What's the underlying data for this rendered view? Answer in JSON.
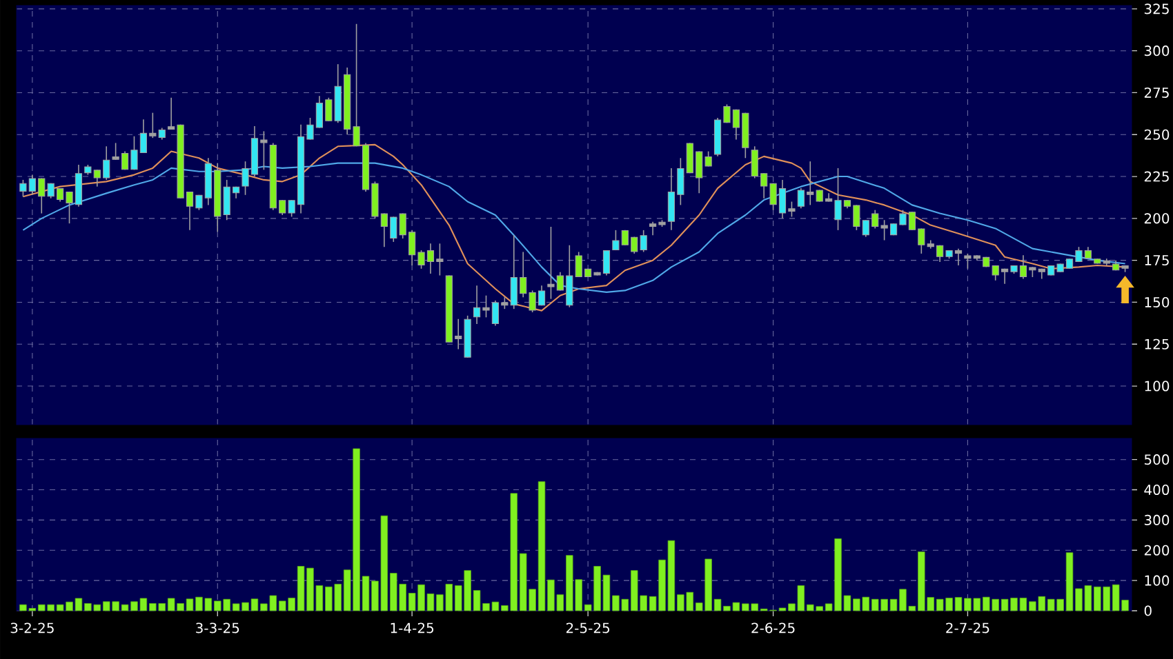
{
  "chart_data": [
    {
      "type": "candlestick",
      "categories": [
        null,
        null,
        null,
        null,
        null,
        null,
        null,
        null,
        null,
        null,
        null,
        null,
        null,
        null,
        null,
        null,
        null,
        null,
        null,
        null,
        null,
        null,
        null,
        null,
        null,
        null,
        null,
        null,
        null,
        null,
        null,
        null,
        null,
        null,
        null,
        null,
        null,
        null,
        null,
        null,
        null,
        null,
        null,
        null,
        null,
        null,
        null,
        null,
        null,
        null,
        null,
        null,
        null,
        null,
        null,
        null,
        null,
        null,
        null,
        null,
        null,
        null,
        null,
        null,
        null,
        null,
        null,
        null,
        null,
        null,
        null,
        null,
        null,
        null,
        null,
        null,
        null,
        null,
        null,
        null,
        null,
        null,
        null,
        null,
        null,
        null,
        null,
        null,
        null,
        null,
        null,
        null,
        null,
        null,
        null,
        null,
        null,
        null,
        null,
        null,
        null,
        null,
        null,
        null,
        null,
        null,
        null,
        null,
        null,
        null,
        null,
        null,
        null,
        null,
        null,
        null,
        null,
        null,
        null,
        null
      ],
      "ohlc": [
        [
          217,
          223,
          213,
          220
        ],
        [
          217,
          226,
          214,
          223
        ],
        [
          223,
          224,
          203,
          214
        ],
        [
          214,
          221,
          212,
          220
        ],
        [
          217,
          218,
          210,
          212
        ],
        [
          215,
          216,
          197,
          210
        ],
        [
          209,
          232,
          207,
          226
        ],
        [
          228,
          232,
          226,
          230
        ],
        [
          228,
          229,
          219,
          225
        ],
        [
          225,
          243,
          223,
          234
        ],
        [
          236,
          245,
          235,
          236
        ],
        [
          238,
          240,
          229,
          230
        ],
        [
          230,
          249,
          229,
          240
        ],
        [
          240,
          259,
          239,
          250
        ],
        [
          250,
          263,
          248,
          250
        ],
        [
          249,
          254,
          247,
          252
        ],
        [
          254,
          272,
          253,
          254
        ],
        [
          255,
          256,
          212,
          213
        ],
        [
          215,
          216,
          193,
          208
        ],
        [
          207,
          214,
          205,
          213
        ],
        [
          213,
          236,
          208,
          232
        ],
        [
          228,
          233,
          192,
          202
        ],
        [
          203,
          223,
          199,
          218
        ],
        [
          216,
          219,
          212,
          218
        ],
        [
          220,
          234,
          214,
          229
        ],
        [
          227,
          255,
          225,
          247
        ],
        [
          246,
          252,
          229,
          246
        ],
        [
          243,
          245,
          205,
          207
        ],
        [
          210,
          211,
          202,
          204
        ],
        [
          204,
          211,
          201,
          210
        ],
        [
          209,
          256,
          203,
          248
        ],
        [
          248,
          260,
          247,
          255
        ],
        [
          255,
          273,
          254,
          268
        ],
        [
          270,
          272,
          258,
          259
        ],
        [
          259,
          292,
          257,
          278
        ],
        [
          285,
          290,
          250,
          254
        ],
        [
          254,
          316,
          243,
          244
        ],
        [
          243,
          245,
          216,
          218
        ],
        [
          220,
          222,
          200,
          202
        ],
        [
          202,
          203,
          183,
          196
        ],
        [
          189,
          201,
          186,
          200
        ],
        [
          202,
          203,
          188,
          191
        ],
        [
          191,
          193,
          172,
          179
        ],
        [
          179,
          181,
          170,
          173
        ],
        [
          180,
          185,
          167,
          175
        ],
        [
          175,
          185,
          166,
          175
        ],
        [
          165,
          166,
          126,
          127
        ],
        [
          129,
          140,
          122,
          129
        ],
        [
          118,
          142,
          117,
          139
        ],
        [
          142,
          160,
          137,
          146
        ],
        [
          146,
          154,
          141,
          146
        ],
        [
          138,
          151,
          136,
          149
        ],
        [
          149,
          153,
          146,
          149
        ],
        [
          149,
          190,
          146,
          164
        ],
        [
          164,
          180,
          153,
          156
        ],
        [
          155,
          157,
          144,
          146
        ],
        [
          149,
          160,
          148,
          156
        ],
        [
          160,
          195,
          152,
          160
        ],
        [
          165,
          168,
          157,
          158
        ],
        [
          149,
          184,
          147,
          165
        ],
        [
          177,
          180,
          165,
          166
        ],
        [
          169,
          170,
          165,
          166
        ],
        [
          167,
          168,
          166,
          167
        ],
        [
          168,
          180,
          166,
          180
        ],
        [
          182,
          193,
          181,
          186
        ],
        [
          192,
          193,
          184,
          185
        ],
        [
          188,
          189,
          179,
          181
        ],
        [
          182,
          193,
          180,
          189
        ],
        [
          196,
          198,
          190,
          196
        ],
        [
          197,
          199,
          195,
          197
        ],
        [
          199,
          230,
          193,
          215
        ],
        [
          215,
          236,
          208,
          229
        ],
        [
          244,
          245,
          227,
          228
        ],
        [
          239,
          240,
          215,
          225
        ],
        [
          236,
          240,
          231,
          232
        ],
        [
          239,
          260,
          237,
          258
        ],
        [
          266,
          268,
          257,
          258
        ],
        [
          264,
          265,
          247,
          255
        ],
        [
          262,
          263,
          236,
          243
        ],
        [
          240,
          243,
          224,
          226
        ],
        [
          226,
          227,
          212,
          220
        ],
        [
          220,
          221,
          205,
          209
        ],
        [
          204,
          223,
          200,
          217
        ],
        [
          205,
          210,
          201,
          205
        ],
        [
          208,
          218,
          206,
          216
        ],
        [
          215,
          234,
          208,
          215
        ],
        [
          216,
          217,
          210,
          211
        ],
        [
          211,
          215,
          210,
          211
        ],
        [
          200,
          230,
          193,
          210
        ],
        [
          210,
          211,
          206,
          208
        ],
        [
          207,
          208,
          193,
          196
        ],
        [
          191,
          199,
          189,
          198
        ],
        [
          202,
          205,
          194,
          196
        ],
        [
          195,
          199,
          187,
          195
        ],
        [
          191,
          197,
          190,
          196
        ],
        [
          197,
          205,
          196,
          202
        ],
        [
          203,
          204,
          193,
          194
        ],
        [
          193,
          194,
          179,
          185
        ],
        [
          184,
          187,
          182,
          184
        ],
        [
          183,
          184,
          174,
          178
        ],
        [
          178,
          181,
          176,
          180
        ],
        [
          180,
          182,
          172,
          180
        ],
        [
          177,
          179,
          170,
          177
        ],
        [
          177,
          178,
          175,
          177
        ],
        [
          176,
          177,
          171,
          172
        ],
        [
          171,
          172,
          163,
          167
        ],
        [
          169,
          170,
          161,
          169
        ],
        [
          169,
          172,
          167,
          171
        ],
        [
          171,
          178,
          164,
          166
        ],
        [
          170,
          171,
          165,
          170
        ],
        [
          169,
          170,
          164,
          169
        ],
        [
          167,
          171,
          166,
          171
        ],
        [
          169,
          173,
          168,
          172
        ],
        [
          171,
          176,
          170,
          175
        ],
        [
          175,
          183,
          174,
          180
        ],
        [
          180,
          183,
          176,
          177
        ],
        [
          175,
          176,
          173,
          174
        ],
        [
          174,
          176,
          172,
          174
        ],
        [
          172,
          175,
          169,
          170
        ],
        [
          171,
          172,
          168,
          171
        ]
      ],
      "colors": [
        "#33e6f2",
        "#33e6f2",
        "#80f020",
        "#33e6f2",
        "#80f020",
        "#80f020",
        "#33e6f2",
        "#33e6f2",
        "#80f020",
        "#33e6f2",
        "#a0a0a0",
        "#80f020",
        "#33e6f2",
        "#33e6f2",
        "#a0a0a0",
        "#33e6f2",
        "#a0a0a0",
        "#80f020",
        "#80f020",
        "#33e6f2",
        "#33e6f2",
        "#80f020",
        "#33e6f2",
        "#33e6f2",
        "#33e6f2",
        "#33e6f2",
        "#a0a0a0",
        "#80f020",
        "#80f020",
        "#33e6f2",
        "#33e6f2",
        "#33e6f2",
        "#33e6f2",
        "#80f020",
        "#33e6f2",
        "#80f020",
        "#80f020",
        "#80f020",
        "#80f020",
        "#80f020",
        "#33e6f2",
        "#80f020",
        "#80f020",
        "#80f020",
        "#80f020",
        "#a0a0a0",
        "#80f020",
        "#a0a0a0",
        "#33e6f2",
        "#33e6f2",
        "#a0a0a0",
        "#33e6f2",
        "#a0a0a0",
        "#33e6f2",
        "#80f020",
        "#80f020",
        "#33e6f2",
        "#a0a0a0",
        "#80f020",
        "#33e6f2",
        "#80f020",
        "#80f020",
        "#a0a0a0",
        "#33e6f2",
        "#33e6f2",
        "#80f020",
        "#80f020",
        "#33e6f2",
        "#a0a0a0",
        "#a0a0a0",
        "#33e6f2",
        "#33e6f2",
        "#80f020",
        "#80f020",
        "#80f020",
        "#33e6f2",
        "#80f020",
        "#80f020",
        "#80f020",
        "#80f020",
        "#80f020",
        "#80f020",
        "#33e6f2",
        "#a0a0a0",
        "#33e6f2",
        "#a0a0a0",
        "#80f020",
        "#a0a0a0",
        "#33e6f2",
        "#80f020",
        "#80f020",
        "#33e6f2",
        "#80f020",
        "#a0a0a0",
        "#33e6f2",
        "#33e6f2",
        "#80f020",
        "#80f020",
        "#a0a0a0",
        "#80f020",
        "#33e6f2",
        "#a0a0a0",
        "#a0a0a0",
        "#a0a0a0",
        "#80f020",
        "#80f020",
        "#a0a0a0",
        "#33e6f2",
        "#80f020",
        "#a0a0a0",
        "#a0a0a0",
        "#33e6f2",
        "#33e6f2",
        "#33e6f2",
        "#33e6f2",
        "#80f020",
        "#80f020",
        "#a0a0a0",
        "#80f020",
        "#a0a0a0"
      ],
      "series": [
        {
          "type": "line",
          "color": "#e0905a",
          "values": [
            213,
            null,
            null,
            null,
            219,
            null,
            null,
            null,
            null,
            222,
            null,
            null,
            226,
            null,
            230,
            null,
            240,
            null,
            null,
            236,
            null,
            230,
            null,
            null,
            226,
            null,
            223,
            null,
            222,
            null,
            226,
            null,
            236,
            null,
            243,
            null,
            null,
            null,
            244,
            null,
            237,
            232,
            226,
            220,
            null,
            null,
            196,
            null,
            173,
            null,
            null,
            158,
            null,
            149,
            null,
            null,
            145,
            null,
            154,
            null,
            158,
            null,
            null,
            160,
            null,
            169,
            null,
            null,
            175,
            null,
            184,
            null,
            null,
            202,
            null,
            218,
            null,
            null,
            232,
            null,
            237,
            null,
            null,
            233,
            230,
            222,
            null,
            null,
            214,
            null,
            null,
            211,
            null,
            208,
            null,
            null,
            202,
            null,
            196,
            null,
            null,
            191,
            null,
            null,
            null,
            184,
            177,
            null,
            null,
            173,
            null,
            170,
            null,
            null,
            171,
            null,
            172,
            null,
            null,
            171
          ]
        },
        {
          "type": "line",
          "color": "#50a8e8",
          "values": [
            193,
            null,
            200,
            null,
            null,
            208,
            null,
            null,
            null,
            215,
            null,
            null,
            220,
            null,
            223,
            null,
            230,
            null,
            null,
            228,
            null,
            228,
            null,
            null,
            229,
            null,
            231,
            null,
            230,
            null,
            null,
            231,
            null,
            null,
            233,
            null,
            null,
            null,
            233,
            null,
            null,
            230,
            null,
            226,
            null,
            null,
            219,
            null,
            210,
            null,
            null,
            202,
            null,
            190,
            null,
            null,
            171,
            null,
            160,
            null,
            158,
            null,
            null,
            156,
            null,
            157,
            null,
            null,
            163,
            null,
            171,
            null,
            null,
            180,
            null,
            191,
            null,
            null,
            202,
            null,
            211,
            null,
            null,
            217,
            219,
            null,
            null,
            null,
            225,
            225,
            null,
            null,
            null,
            218,
            null,
            null,
            208,
            null,
            null,
            203,
            null,
            null,
            199,
            null,
            null,
            194,
            null,
            null,
            null,
            182,
            null,
            null,
            null,
            178,
            null,
            null,
            175,
            null,
            null,
            173
          ]
        }
      ],
      "ylim": [
        77,
        327
      ],
      "yticks": [
        100,
        125,
        150,
        175,
        200,
        225,
        250,
        275,
        300,
        325
      ],
      "grid": true,
      "tick_labels": "y"
    },
    {
      "type": "bar",
      "categories": [
        null,
        "3-2-25",
        null,
        null,
        null,
        null,
        null,
        null,
        null,
        null,
        null,
        null,
        null,
        null,
        null,
        null,
        null,
        null,
        null,
        null,
        null,
        "3-3-25",
        null,
        null,
        null,
        null,
        null,
        null,
        null,
        null,
        null,
        null,
        null,
        null,
        null,
        null,
        null,
        null,
        null,
        null,
        null,
        null,
        "1-4-25",
        null,
        null,
        null,
        null,
        null,
        null,
        null,
        null,
        null,
        null,
        null,
        null,
        null,
        null,
        null,
        null,
        null,
        null,
        "2-5-25",
        null,
        null,
        null,
        null,
        null,
        null,
        null,
        null,
        null,
        null,
        null,
        null,
        null,
        null,
        null,
        null,
        null,
        null,
        null,
        "2-6-25",
        null,
        null,
        null,
        null,
        null,
        null,
        null,
        null,
        null,
        null,
        null,
        null,
        null,
        null,
        null,
        null,
        null,
        null,
        null,
        null,
        "2-7-25",
        null,
        null,
        null,
        null,
        null,
        null,
        null,
        null,
        null,
        null,
        null,
        null,
        null,
        null,
        null,
        null,
        null
      ],
      "values": [
        20,
        8,
        20,
        20,
        20,
        29,
        41,
        24,
        20,
        30,
        30,
        20,
        30,
        41,
        24,
        24,
        41,
        24,
        39,
        45,
        41,
        32,
        38,
        23,
        27,
        39,
        23,
        50,
        32,
        42,
        147,
        141,
        83,
        79,
        88,
        135,
        536,
        114,
        98,
        314,
        124,
        88,
        58,
        86,
        56,
        53,
        88,
        83,
        133,
        67,
        24,
        29,
        17,
        388,
        189,
        71,
        427,
        102,
        53,
        183,
        103,
        20,
        147,
        118,
        50,
        38,
        133,
        50,
        47,
        168,
        232,
        53,
        61,
        26,
        171,
        38,
        15,
        27,
        23,
        23,
        6,
        2,
        9,
        23,
        83,
        20,
        14,
        23,
        238,
        50,
        39,
        45,
        38,
        38,
        38,
        71,
        15,
        195,
        44,
        38,
        42,
        44,
        41,
        41,
        45,
        38,
        38,
        42,
        42,
        30,
        47,
        38,
        38,
        192,
        73,
        83,
        79,
        79,
        86,
        35
      ],
      "color": "#80f020",
      "ylim": [
        0,
        570
      ],
      "yticks": [
        0,
        100,
        200,
        300,
        400,
        500
      ],
      "grid": true
    }
  ]
}
